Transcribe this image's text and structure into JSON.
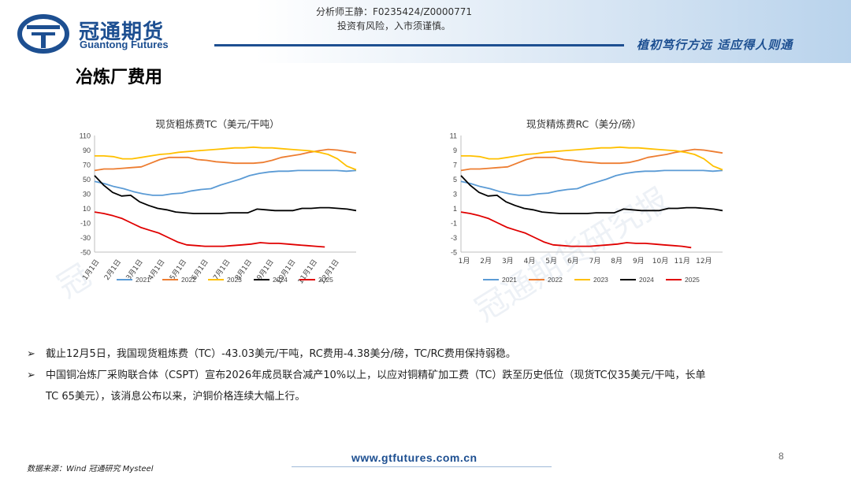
{
  "header": {
    "logo_cn": "冠通期货",
    "logo_en": "Guantong Futures",
    "analyst_line1": "分析师王静：F0235424/Z0000771",
    "analyst_line2": "投资有风险，入市须谨慎。",
    "slogan": "植初笃行方远  适应得人则通"
  },
  "page_title": "冶炼厂费用",
  "watermark": "冠通期货研究报",
  "watermark_left": "冠",
  "bullets": [
    {
      "text": "截止12月5日，我国现货粗炼费（TC）-43.03美元/干吨，RC费用-4.38美分/磅，TC/RC费用保持弱稳。"
    },
    {
      "line1": "中国铜冶炼厂采购联合体（CSPT）宣布2026年成员联合减产10%以上，以应对铜精矿加工费（TC）跌至历史低位（现货TC仅35美元/干吨，长单",
      "line2": "TC 65美元），该消息公布以来，沪铜价格连续大幅上行。"
    }
  ],
  "footer": {
    "source": "数据来源：Wind 冠通研究 Mysteel",
    "url": "www.gtfutures.com.cn",
    "page_number": "8"
  },
  "colors": {
    "brand_blue": "#1d4f91",
    "s2021": "#5b9bd5",
    "s2022": "#ed7d31",
    "s2023": "#ffc000",
    "s2024": "#000000",
    "s2025": "#e00000"
  },
  "chart_data": [
    {
      "type": "line",
      "title": "现货粗炼费TC（美元/干吨）",
      "xlabel": "",
      "ylabel": "",
      "ylim": [
        -50,
        110
      ],
      "yticks": [
        "110",
        "90",
        "70",
        "50",
        "30",
        "10",
        "-10",
        "-30",
        "-50"
      ],
      "x_tick_labels": [
        "1月1日",
        "2月1日",
        "3月1日",
        "4月1日",
        "5月1日",
        "6月1日",
        "7月1日",
        "8月1日",
        "9月1日",
        "10月1日",
        "11月1日",
        "12月1日"
      ],
      "legend_position": "bottom",
      "series": [
        {
          "name": "2021",
          "color": "#5b9bd5",
          "values": [
            47,
            44,
            40,
            37,
            33,
            30,
            28,
            28,
            30,
            31,
            34,
            36,
            37,
            42,
            46,
            50,
            55,
            58,
            60,
            61,
            61,
            62,
            62,
            62,
            62,
            62,
            61,
            62
          ]
        },
        {
          "name": "2022",
          "color": "#ed7d31",
          "values": [
            62,
            64,
            64,
            65,
            66,
            67,
            72,
            77,
            80,
            80,
            80,
            77,
            76,
            74,
            73,
            72,
            72,
            72,
            73,
            76,
            80,
            82,
            84,
            87,
            89,
            91,
            90,
            88,
            86
          ]
        },
        {
          "name": "2023",
          "color": "#ffc000",
          "values": [
            82,
            82,
            81,
            78,
            78,
            80,
            82,
            84,
            85,
            87,
            88,
            89,
            90,
            91,
            92,
            93,
            93,
            94,
            93,
            93,
            92,
            91,
            90,
            89,
            87,
            84,
            78,
            68,
            63
          ]
        },
        {
          "name": "2024",
          "color": "#000000",
          "values": [
            55,
            42,
            32,
            27,
            28,
            19,
            14,
            10,
            8,
            5,
            4,
            3,
            3,
            3,
            3,
            4,
            4,
            4,
            9,
            8,
            7,
            7,
            7,
            10,
            10,
            11,
            11,
            10,
            9,
            7
          ]
        },
        {
          "name": "2025",
          "color": "#e00000",
          "values": [
            5,
            3,
            0,
            -4,
            -10,
            -16,
            -20,
            -24,
            -30,
            -36,
            -40,
            -41,
            -42,
            -42,
            -42,
            -41,
            -40,
            -39,
            -37,
            -38,
            -38,
            -39,
            -40,
            -41,
            -42,
            -43
          ]
        }
      ]
    },
    {
      "type": "line",
      "title": "现货精炼费RC（美分/磅）",
      "xlabel": "",
      "ylabel": "",
      "ylim": [
        -5,
        11
      ],
      "yticks": [
        "11",
        "9",
        "7",
        "5",
        "3",
        "1",
        "-1",
        "-3",
        "-5"
      ],
      "x_tick_labels": [
        "1月",
        "2月",
        "3月",
        "4月",
        "5月",
        "6月",
        "7月",
        "8月",
        "9月",
        "10月",
        "11月",
        "12月"
      ],
      "legend_position": "bottom",
      "series": [
        {
          "name": "2021",
          "color": "#5b9bd5",
          "values": [
            4.7,
            4.4,
            4.0,
            3.7,
            3.3,
            3.0,
            2.8,
            2.8,
            3.0,
            3.1,
            3.4,
            3.6,
            3.7,
            4.2,
            4.6,
            5.0,
            5.5,
            5.8,
            6.0,
            6.1,
            6.1,
            6.2,
            6.2,
            6.2,
            6.2,
            6.2,
            6.1,
            6.2
          ]
        },
        {
          "name": "2022",
          "color": "#ed7d31",
          "values": [
            6.2,
            6.4,
            6.4,
            6.5,
            6.6,
            6.7,
            7.2,
            7.7,
            8.0,
            8.0,
            8.0,
            7.7,
            7.6,
            7.4,
            7.3,
            7.2,
            7.2,
            7.2,
            7.3,
            7.6,
            8.0,
            8.2,
            8.4,
            8.7,
            8.9,
            9.1,
            9.0,
            8.8,
            8.6
          ]
        },
        {
          "name": "2023",
          "color": "#ffc000",
          "values": [
            8.2,
            8.2,
            8.1,
            7.8,
            7.8,
            8.0,
            8.2,
            8.4,
            8.5,
            8.7,
            8.8,
            8.9,
            9.0,
            9.1,
            9.2,
            9.3,
            9.3,
            9.4,
            9.3,
            9.3,
            9.2,
            9.1,
            9.0,
            8.9,
            8.7,
            8.4,
            7.8,
            6.8,
            6.3
          ]
        },
        {
          "name": "2024",
          "color": "#000000",
          "values": [
            5.5,
            4.2,
            3.2,
            2.7,
            2.8,
            1.9,
            1.4,
            1.0,
            0.8,
            0.5,
            0.4,
            0.3,
            0.3,
            0.3,
            0.3,
            0.4,
            0.4,
            0.4,
            0.9,
            0.8,
            0.7,
            0.7,
            0.7,
            1.0,
            1.0,
            1.1,
            1.1,
            1.0,
            0.9,
            0.7
          ]
        },
        {
          "name": "2025",
          "color": "#e00000",
          "values": [
            0.5,
            0.3,
            0.0,
            -0.4,
            -1.0,
            -1.6,
            -2.0,
            -2.4,
            -3.0,
            -3.6,
            -4.0,
            -4.1,
            -4.2,
            -4.2,
            -4.2,
            -4.1,
            -4.0,
            -3.9,
            -3.7,
            -3.8,
            -3.8,
            -3.9,
            -4.0,
            -4.1,
            -4.2,
            -4.38
          ]
        }
      ]
    }
  ]
}
